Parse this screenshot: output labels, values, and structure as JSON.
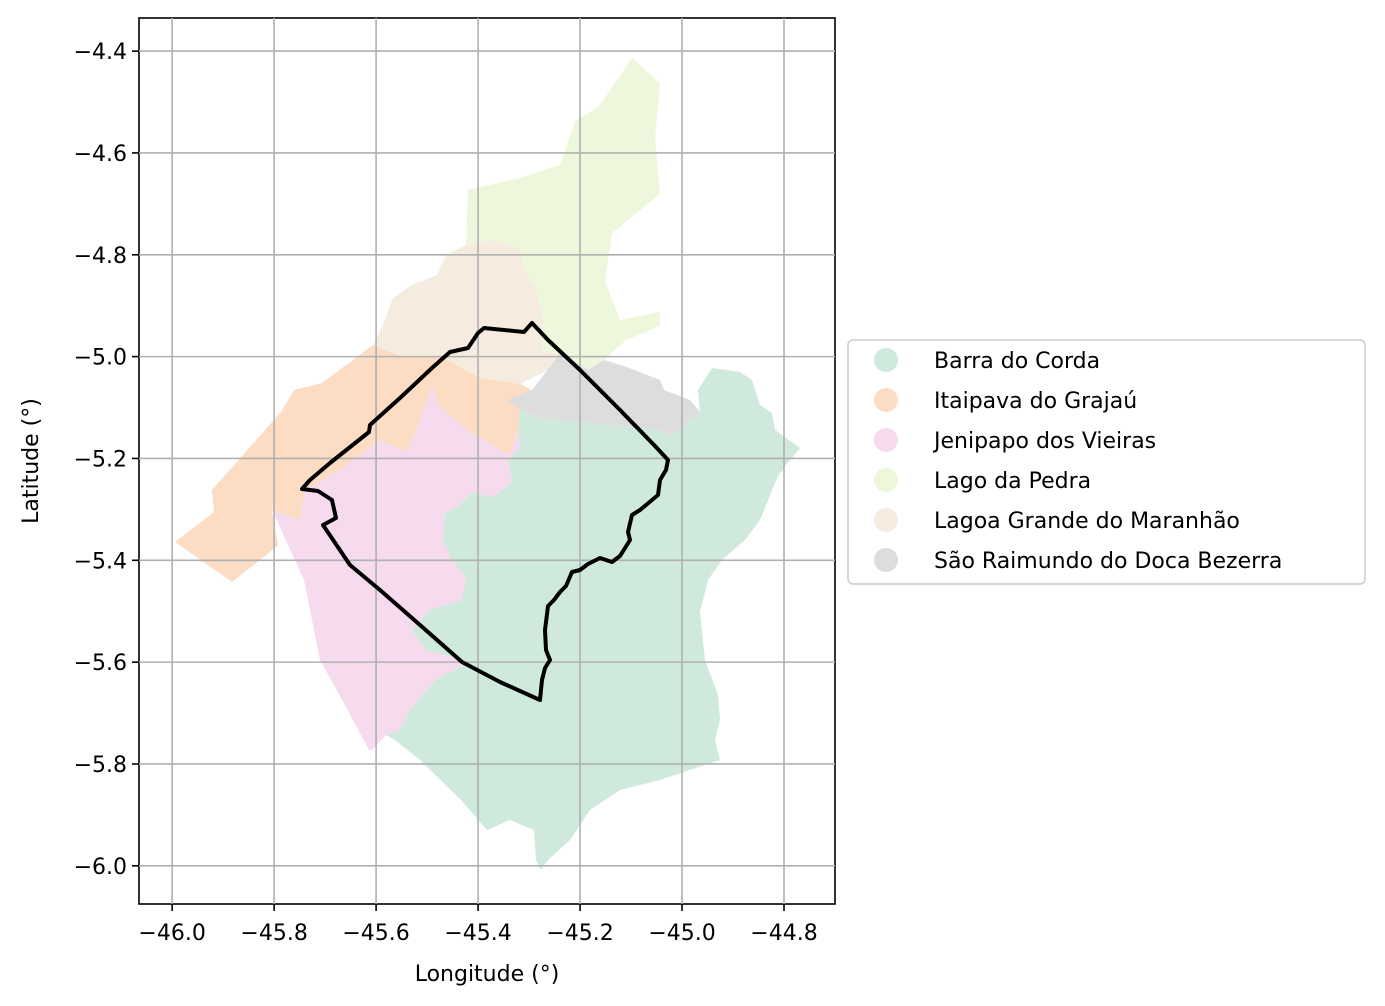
{
  "map": {
    "x_axis_label": "Longitude (°)",
    "y_axis_label": "Latitude (°)",
    "x_ticks": [
      {
        "value": -46.0,
        "label": "−46.0"
      },
      {
        "value": -45.8,
        "label": "−45.8"
      },
      {
        "value": -45.6,
        "label": "−45.6"
      },
      {
        "value": -45.4,
        "label": "−45.4"
      },
      {
        "value": -45.2,
        "label": "−45.2"
      },
      {
        "value": -45.0,
        "label": "−45.0"
      },
      {
        "value": -44.8,
        "label": "−44.8"
      }
    ],
    "y_ticks": [
      {
        "value": -4.4,
        "label": "−4.4"
      },
      {
        "value": -4.6,
        "label": "−4.6"
      },
      {
        "value": -4.8,
        "label": "−4.8"
      },
      {
        "value": -5.0,
        "label": "−5.0"
      },
      {
        "value": -5.2,
        "label": "−5.2"
      },
      {
        "value": -5.4,
        "label": "−5.4"
      },
      {
        "value": -5.6,
        "label": "−5.6"
      },
      {
        "value": -5.8,
        "label": "−5.8"
      },
      {
        "value": -6.0,
        "label": "−6.0"
      }
    ],
    "xlim": [
      -46.065,
      -44.7
    ],
    "ylim": [
      -6.075,
      -4.335
    ],
    "grid": true,
    "legend_position": "right",
    "legend": [
      {
        "label": "Barra do Corda",
        "color": "#cfeadc"
      },
      {
        "label": "Itaipava do Grajaú",
        "color": "#fcdcc3"
      },
      {
        "label": "Jenipapo dos Vieiras",
        "color": "#f5dbed"
      },
      {
        "label": "Lago da Pedra",
        "color": "#ecf7db"
      },
      {
        "label": "Lagoa Grande do Maranhão",
        "color": "#f5ebdf"
      },
      {
        "label": "São Raimundo do Doca Bezerra",
        "color": "#dddddd"
      }
    ],
    "highlight_outline_color": "#000000"
  }
}
